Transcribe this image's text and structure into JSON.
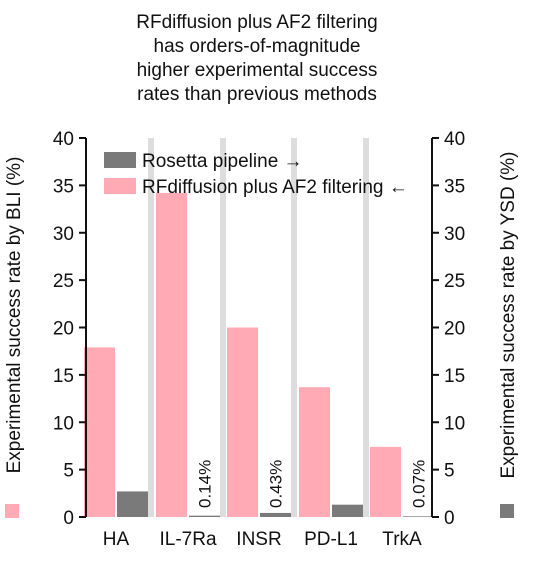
{
  "chart_data": {
    "type": "bar",
    "title_lines": [
      "RFdiffusion plus AF2 filtering",
      "has orders-of-magnitude",
      "higher experimental success",
      "rates than previous methods"
    ],
    "categories": [
      "HA",
      "IL-7Ra",
      "INSR",
      "PD-L1",
      "TrkA"
    ],
    "series": [
      {
        "name": "RFdiffusion plus AF2 filtering ←",
        "axis": "left",
        "color": "#ffaab4",
        "values": [
          17.9,
          34.2,
          20.0,
          13.7,
          7.4
        ]
      },
      {
        "name": "Rosetta pipeline →",
        "axis": "right",
        "color": "#7a7a7a",
        "values": [
          2.7,
          0.14,
          0.43,
          1.3,
          0.07
        ],
        "annotations": [
          "",
          "0.14%",
          "0.43%",
          "",
          "0.07%"
        ]
      }
    ],
    "ylabel_left": "Experimental success rate by BLI (%)",
    "ylabel_right": "Experimental success rate by YSD (%)",
    "ylim": [
      0,
      40
    ],
    "yticks": [
      0,
      5,
      10,
      15,
      20,
      25,
      30,
      35,
      40
    ],
    "separator_color": "#dddddd",
    "legend_position": "top"
  }
}
